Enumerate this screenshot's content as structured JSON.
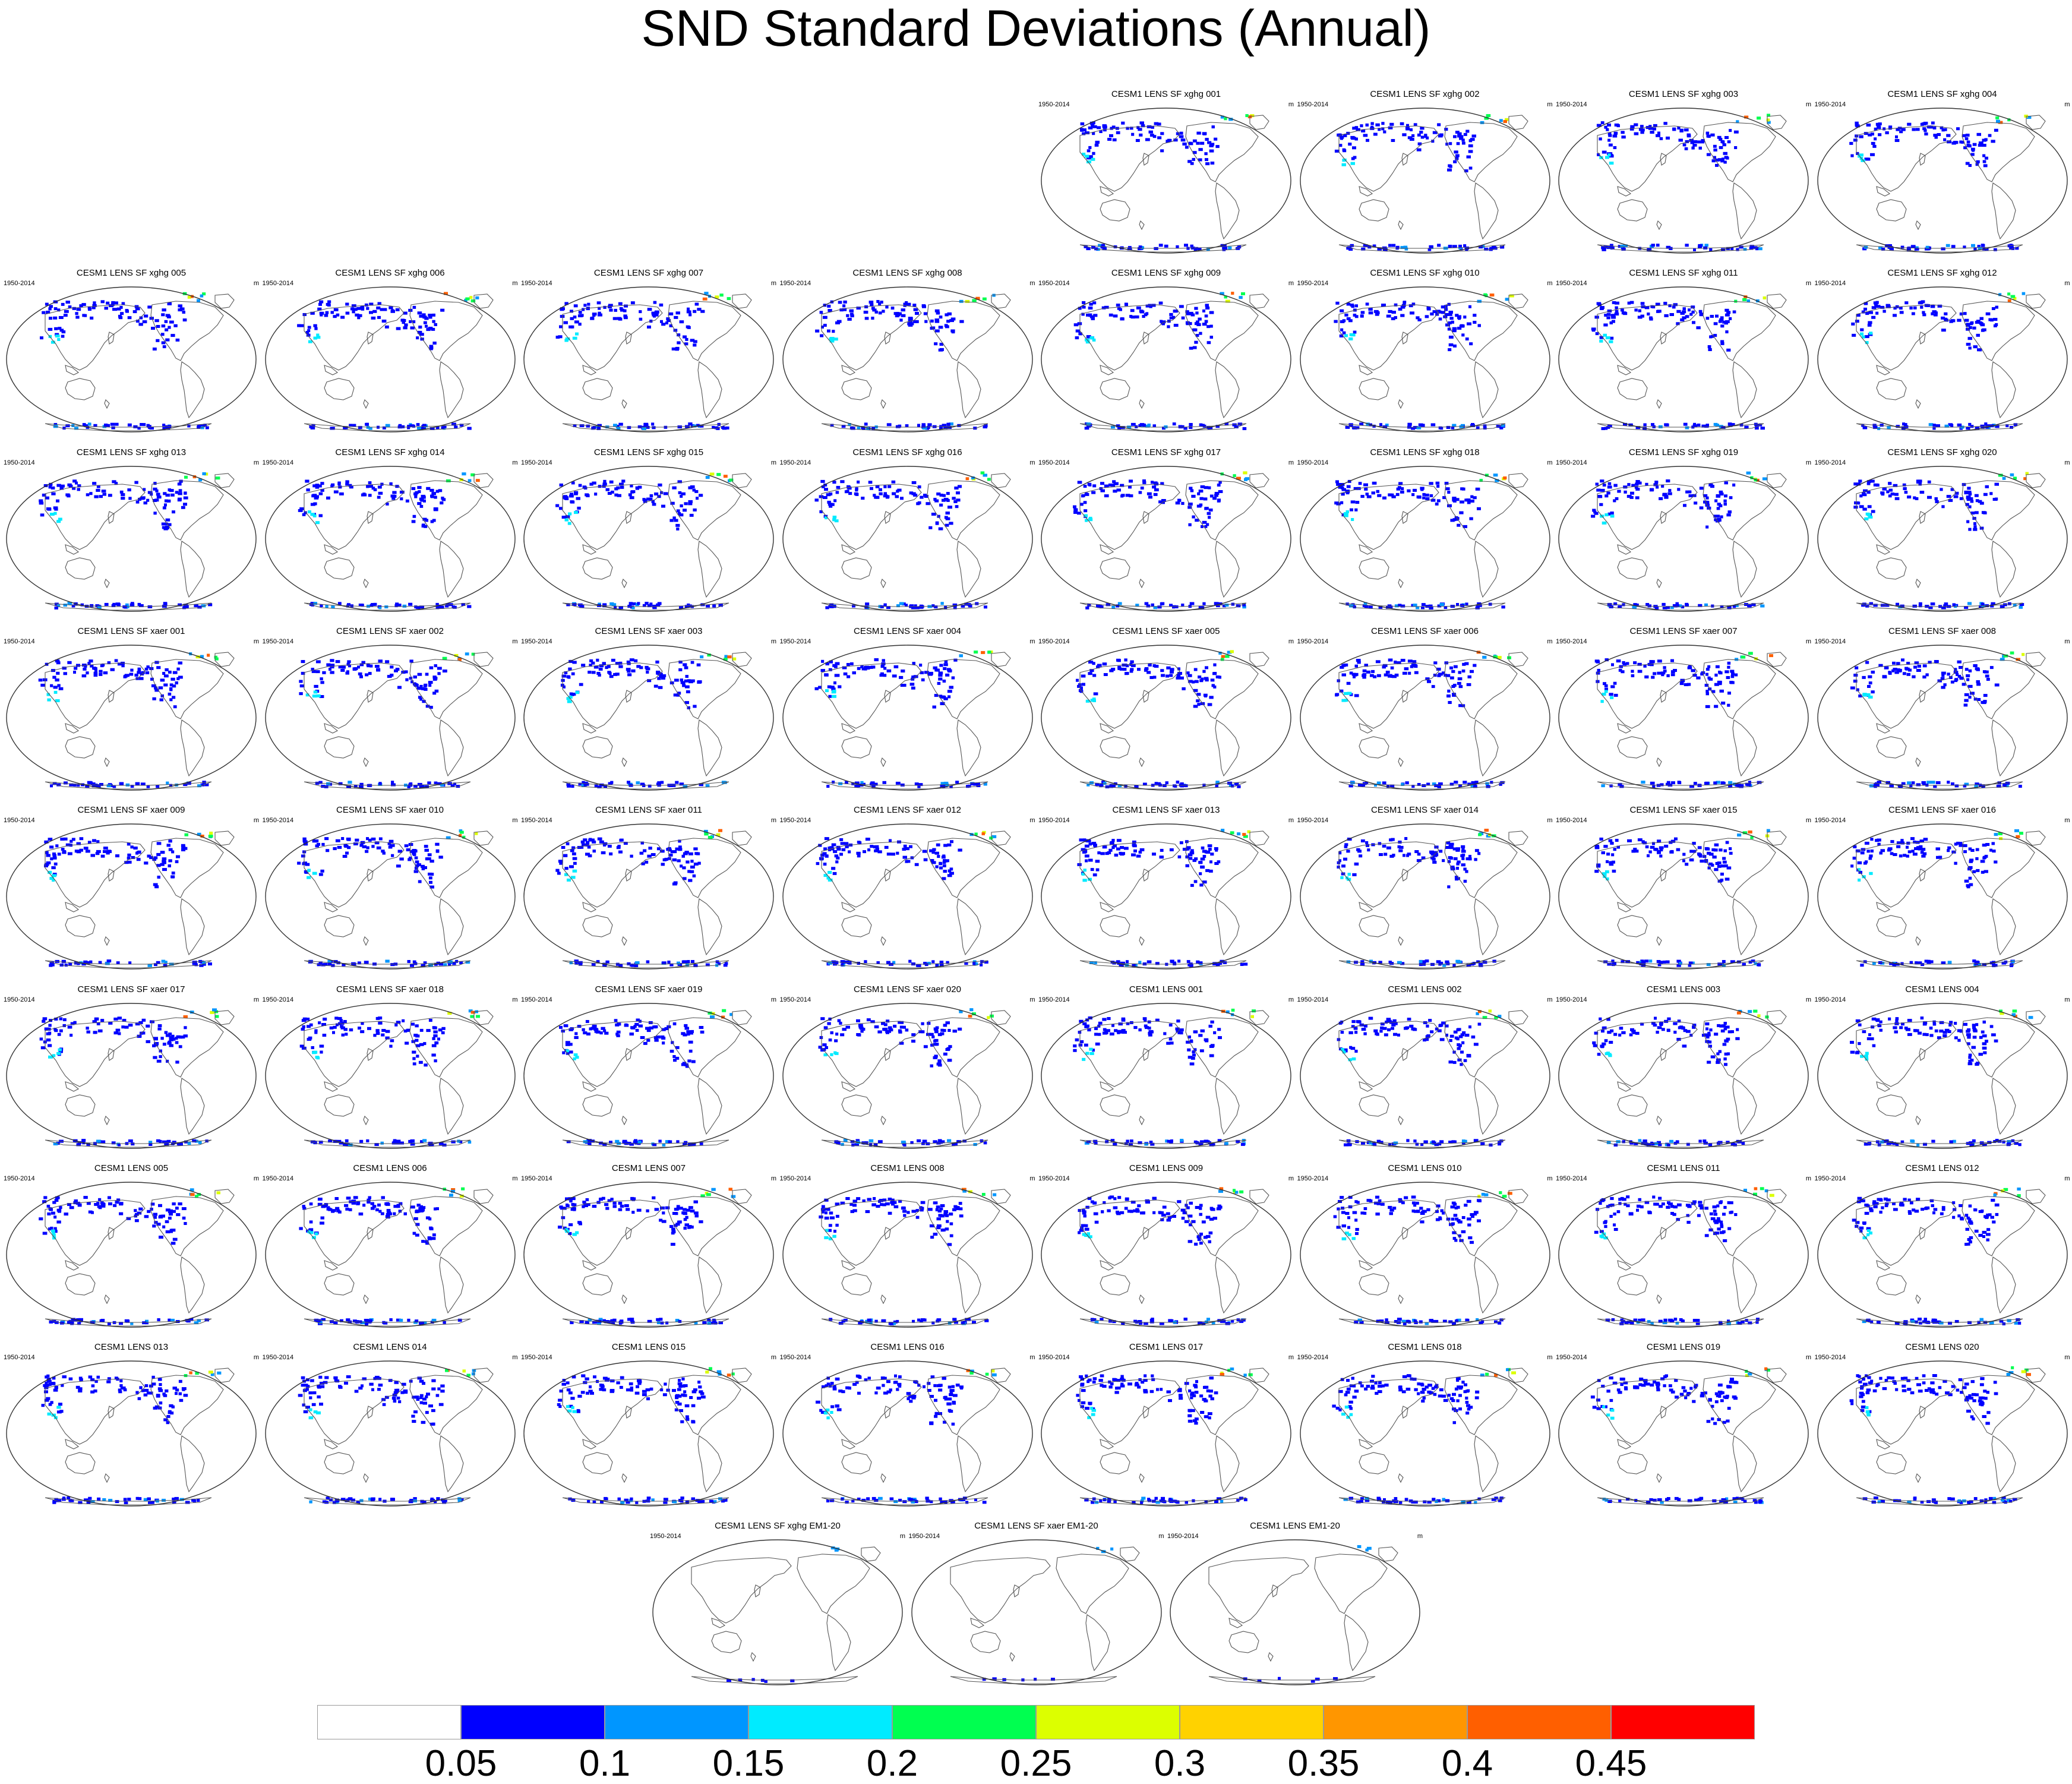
{
  "title": "SND Standard Deviations (Annual)",
  "period": "1950-2014",
  "units": "m",
  "panels": [
    {
      "title": "CESM1 LENS SF xghg 001"
    },
    {
      "title": "CESM1 LENS SF xghg 002"
    },
    {
      "title": "CESM1 LENS SF xghg 003"
    },
    {
      "title": "CESM1 LENS SF xghg 004"
    },
    {
      "title": "CESM1 LENS SF xghg 005"
    },
    {
      "title": "CESM1 LENS SF xghg 006"
    },
    {
      "title": "CESM1 LENS SF xghg 007"
    },
    {
      "title": "CESM1 LENS SF xghg 008"
    },
    {
      "title": "CESM1 LENS SF xghg 009"
    },
    {
      "title": "CESM1 LENS SF xghg 010"
    },
    {
      "title": "CESM1 LENS SF xghg 011"
    },
    {
      "title": "CESM1 LENS SF xghg 012"
    },
    {
      "title": "CESM1 LENS SF xghg 013"
    },
    {
      "title": "CESM1 LENS SF xghg 014"
    },
    {
      "title": "CESM1 LENS SF xghg 015"
    },
    {
      "title": "CESM1 LENS SF xghg 016"
    },
    {
      "title": "CESM1 LENS SF xghg 017"
    },
    {
      "title": "CESM1 LENS SF xghg 018"
    },
    {
      "title": "CESM1 LENS SF xghg 019"
    },
    {
      "title": "CESM1 LENS SF xghg 020"
    },
    {
      "title": "CESM1 LENS SF xaer 001"
    },
    {
      "title": "CESM1 LENS SF xaer 002"
    },
    {
      "title": "CESM1 LENS SF xaer 003"
    },
    {
      "title": "CESM1 LENS SF xaer 004"
    },
    {
      "title": "CESM1 LENS SF xaer 005"
    },
    {
      "title": "CESM1 LENS SF xaer 006"
    },
    {
      "title": "CESM1 LENS SF xaer 007"
    },
    {
      "title": "CESM1 LENS SF xaer 008"
    },
    {
      "title": "CESM1 LENS SF xaer 009"
    },
    {
      "title": "CESM1 LENS SF xaer 010"
    },
    {
      "title": "CESM1 LENS SF xaer 011"
    },
    {
      "title": "CESM1 LENS SF xaer 012"
    },
    {
      "title": "CESM1 LENS SF xaer 013"
    },
    {
      "title": "CESM1 LENS SF xaer 014"
    },
    {
      "title": "CESM1 LENS SF xaer 015"
    },
    {
      "title": "CESM1 LENS SF xaer 016"
    },
    {
      "title": "CESM1 LENS SF xaer 017"
    },
    {
      "title": "CESM1 LENS SF xaer 018"
    },
    {
      "title": "CESM1 LENS SF xaer 019"
    },
    {
      "title": "CESM1 LENS SF xaer 020"
    },
    {
      "title": "CESM1 LENS 001"
    },
    {
      "title": "CESM1 LENS 002"
    },
    {
      "title": "CESM1 LENS 003"
    },
    {
      "title": "CESM1 LENS 004"
    },
    {
      "title": "CESM1 LENS 005"
    },
    {
      "title": "CESM1 LENS 006"
    },
    {
      "title": "CESM1 LENS 007"
    },
    {
      "title": "CESM1 LENS 008"
    },
    {
      "title": "CESM1 LENS 009"
    },
    {
      "title": "CESM1 LENS 010"
    },
    {
      "title": "CESM1 LENS 011"
    },
    {
      "title": "CESM1 LENS 012"
    },
    {
      "title": "CESM1 LENS 013"
    },
    {
      "title": "CESM1 LENS 014"
    },
    {
      "title": "CESM1 LENS 015"
    },
    {
      "title": "CESM1 LENS 016"
    },
    {
      "title": "CESM1 LENS 017"
    },
    {
      "title": "CESM1 LENS 018"
    },
    {
      "title": "CESM1 LENS 019"
    },
    {
      "title": "CESM1 LENS 020"
    },
    {
      "title": "CESM1 LENS SF xghg EM1-20",
      "mean": true
    },
    {
      "title": "CESM1 LENS SF xaer EM1-20",
      "mean": true
    },
    {
      "title": "CESM1 LENS EM1-20",
      "mean": true
    }
  ],
  "colorbar": {
    "colors": [
      "#ffffff",
      "#0000ff",
      "#0096ff",
      "#00ebff",
      "#00ff50",
      "#dcff00",
      "#ffd200",
      "#ff9600",
      "#ff5f00",
      "#ff0000"
    ],
    "labels": [
      "0.05",
      "0.1",
      "0.15",
      "0.2",
      "0.25",
      "0.3",
      "0.35",
      "0.4",
      "0.45"
    ]
  }
}
